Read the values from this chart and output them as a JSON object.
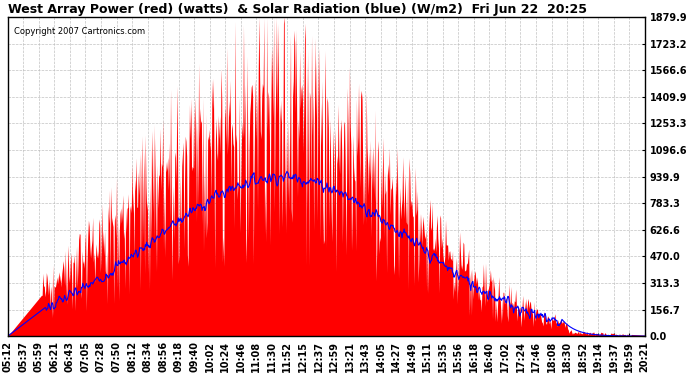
{
  "title": "West Array Power (red) (watts)  & Solar Radiation (blue) (W/m2)  Fri Jun 22  20:25",
  "copyright": "Copyright 2007 Cartronics.com",
  "y_ticks": [
    0.0,
    156.7,
    313.3,
    470.0,
    626.6,
    783.3,
    939.9,
    1096.6,
    1253.3,
    1409.9,
    1566.6,
    1723.2,
    1879.9
  ],
  "y_max": 1879.9,
  "y_min": 0.0,
  "background_color": "#ffffff",
  "plot_bg_color": "#ffffff",
  "grid_color": "#bbbbbb",
  "red_color": "#ff0000",
  "blue_color": "#0000ff",
  "x_labels": [
    "05:12",
    "05:37",
    "05:59",
    "06:21",
    "06:43",
    "07:05",
    "07:28",
    "07:50",
    "08:12",
    "08:34",
    "08:56",
    "09:18",
    "09:40",
    "10:02",
    "10:24",
    "10:46",
    "11:08",
    "11:30",
    "11:52",
    "12:15",
    "12:37",
    "12:59",
    "13:21",
    "13:43",
    "14:05",
    "14:27",
    "14:49",
    "15:11",
    "15:35",
    "15:56",
    "16:18",
    "16:40",
    "17:02",
    "17:24",
    "17:46",
    "18:08",
    "18:30",
    "18:52",
    "19:14",
    "19:37",
    "19:59",
    "20:21"
  ],
  "title_fontsize": 9,
  "tick_fontsize": 7,
  "n_pts": 909
}
